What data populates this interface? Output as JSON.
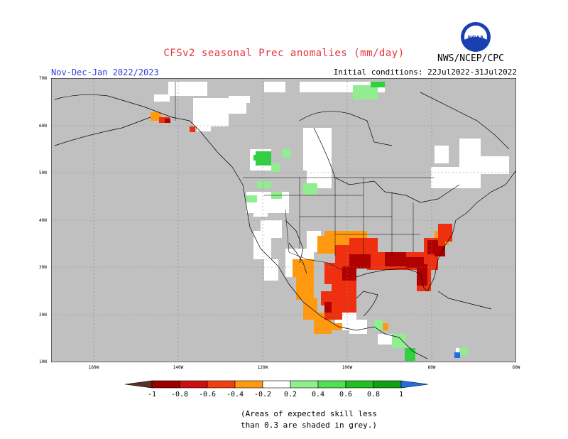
{
  "header": {
    "title": "CFSv2 seasonal Prec anomalies (mm/day)",
    "period": "Nov-Dec-Jan 2022/2023",
    "initial_conditions": "Initial conditions: 22Jul2022-31Jul2022",
    "agency": "NWS/NCEP/CPC",
    "logo_text": "NOAA"
  },
  "axes": {
    "lat_labels": [
      "70N",
      "60N",
      "50N",
      "40N",
      "30N",
      "20N",
      "10N"
    ],
    "lon_labels": [
      "160W",
      "140W",
      "120W",
      "100W",
      "80W",
      "60W"
    ]
  },
  "colorbar": {
    "tick_labels": [
      "-1",
      "-0.8",
      "-0.6",
      "-0.4",
      "-0.2",
      "0.2",
      "0.4",
      "0.6",
      "0.8",
      "1"
    ],
    "colors": [
      "#5b3025",
      "#9b0000",
      "#cc1010",
      "#ee4010",
      "#ff9a10",
      "#ffffff",
      "#90ee90",
      "#50e050",
      "#20c020",
      "#10a010",
      "#1e6fe0"
    ]
  },
  "note": {
    "line1": "(Areas of expected skill less",
    "line2": "than 0.3 are shaded in grey.)"
  },
  "map_colors": {
    "land_grey": "#c0c0c0",
    "ocean_grey": "#c0c0c0",
    "white": "#ffffff",
    "orange": "#ff9a10",
    "red": "#ee3010",
    "dark_red": "#b00000",
    "green": "#30d040",
    "light_green": "#90ee90"
  }
}
